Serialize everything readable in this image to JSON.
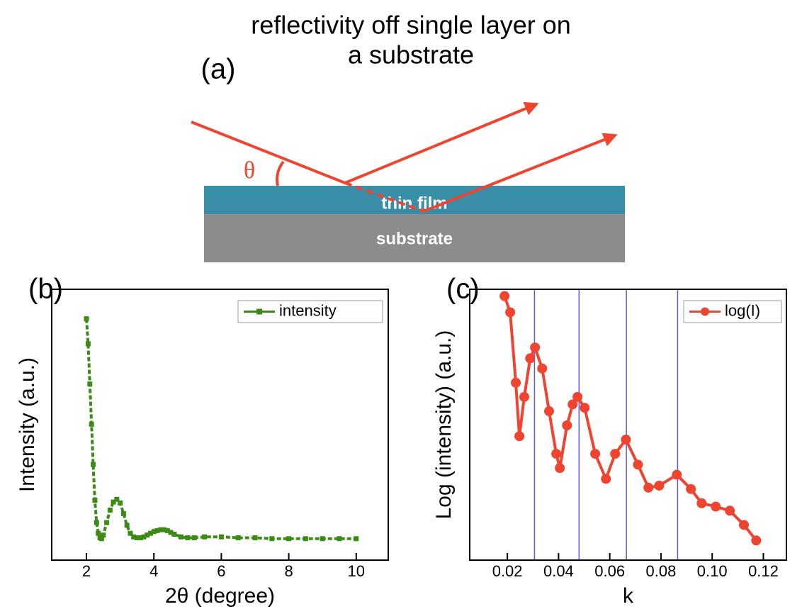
{
  "diagram": {
    "title": [
      "reflectivity off single layer on",
      "a substrate"
    ],
    "panel_label": "(a)",
    "angle_label": "θ",
    "layers": [
      "thin film",
      "substrate"
    ]
  },
  "chart_data": [
    {
      "type": "line",
      "panel_label": "(b)",
      "x_label": "2θ (degree)",
      "y_label": "Intensity (a.u.)",
      "x": [
        2.0,
        2.05,
        2.1,
        2.15,
        2.2,
        2.25,
        2.3,
        2.35,
        2.4,
        2.45,
        2.5,
        2.6,
        2.7,
        2.8,
        2.9,
        3.0,
        3.1,
        3.2,
        3.3,
        3.4,
        3.5,
        3.6,
        3.7,
        3.8,
        3.9,
        4.0,
        4.1,
        4.2,
        4.3,
        4.4,
        4.5,
        4.6,
        4.8,
        5.0,
        5.2,
        5.5,
        6.0,
        6.5,
        7.0,
        7.5,
        8.0,
        8.5,
        9.0,
        9.5,
        10.0
      ],
      "series": [
        {
          "name": "intensity",
          "color": "#3d8a17",
          "marker": "square",
          "values": [
            2.48,
            2.2,
            1.75,
            1.3,
            0.85,
            0.45,
            0.2,
            0.08,
            0.03,
            0.02,
            0.06,
            0.2,
            0.34,
            0.43,
            0.46,
            0.42,
            0.3,
            0.17,
            0.08,
            0.04,
            0.03,
            0.03,
            0.04,
            0.06,
            0.08,
            0.1,
            0.11,
            0.12,
            0.12,
            0.11,
            0.09,
            0.07,
            0.04,
            0.03,
            0.03,
            0.04,
            0.04,
            0.03,
            0.03,
            0.02,
            0.02,
            0.02,
            0.02,
            0.02,
            0.02
          ]
        }
      ],
      "xlim": [
        0.97,
        10.95
      ],
      "xticks": [
        2,
        4,
        6,
        8,
        10
      ],
      "ylim": [
        -0.22,
        2.81
      ]
    },
    {
      "type": "line",
      "panel_label": "(c)",
      "x_label": "k",
      "y_label": "Log (intensity) (a.u.)",
      "x": [
        0.0189,
        0.0211,
        0.0233,
        0.0247,
        0.0266,
        0.0289,
        0.0308,
        0.0336,
        0.0363,
        0.0391,
        0.0405,
        0.0433,
        0.0455,
        0.0474,
        0.0502,
        0.0543,
        0.0585,
        0.0621,
        0.0663,
        0.071,
        0.0751,
        0.0793,
        0.0862,
        0.0917,
        0.0959,
        0.1014,
        0.1069,
        0.1124,
        0.1172
      ],
      "series": [
        {
          "name": "log(I)",
          "color": "#ee4430",
          "marker": "circle",
          "values": [
            3.9,
            3.66,
            2.62,
            1.83,
            2.41,
            2.98,
            3.14,
            2.83,
            2.2,
            1.57,
            1.36,
            1.99,
            2.3,
            2.41,
            2.25,
            1.57,
            1.2,
            1.57,
            1.78,
            1.41,
            1.07,
            1.1,
            1.26,
            1.05,
            0.84,
            0.79,
            0.73,
            0.52,
            0.29
          ]
        }
      ],
      "vlines": [
        0.0306,
        0.048,
        0.0665,
        0.0865
      ],
      "vline_color": "#5a5af0",
      "xlim": [
        0.0053,
        0.129
      ],
      "xticks": [
        0.02,
        0.04,
        0.06,
        0.08,
        {
          "value": 0.1,
          "label": "0.10"
        },
        0.12
      ],
      "ylim": [
        0,
        4
      ]
    }
  ]
}
